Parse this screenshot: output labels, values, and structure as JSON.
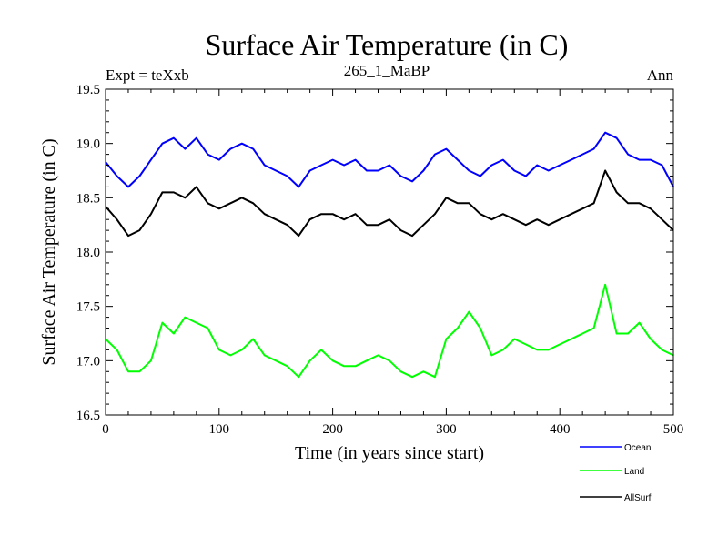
{
  "chart_data": {
    "type": "line",
    "title": "Surface Air Temperature (in C)",
    "subtitle": "265_1_MaBP",
    "left_label": "Expt = teXxb",
    "right_label": "Ann",
    "xlabel": "Time (in years since start)",
    "ylabel": "Surface Air Temperature (in C)",
    "xlim": [
      0,
      500
    ],
    "ylim": [
      16.5,
      19.5
    ],
    "x_ticks": [
      0,
      100,
      200,
      300,
      400,
      500
    ],
    "x_tick_labels": [
      "0",
      "100",
      "200",
      "300",
      "400",
      "500"
    ],
    "y_ticks": [
      16.5,
      17.0,
      17.5,
      18.0,
      18.5,
      19.0,
      19.5
    ],
    "y_tick_labels": [
      "16.5",
      "17.0",
      "17.5",
      "18.0",
      "18.5",
      "19.0",
      "19.5"
    ],
    "grid": false,
    "legend_position": "bottom-right",
    "series": [
      {
        "name": "Ocean",
        "color": "#0000ff",
        "x": [
          0,
          10,
          20,
          30,
          40,
          50,
          60,
          70,
          80,
          90,
          100,
          110,
          120,
          130,
          140,
          150,
          160,
          170,
          180,
          190,
          200,
          210,
          220,
          230,
          240,
          250,
          260,
          270,
          280,
          290,
          300,
          310,
          320,
          330,
          340,
          350,
          360,
          370,
          380,
          390,
          400,
          410,
          420,
          430,
          440,
          450,
          460,
          470,
          480,
          490,
          500
        ],
        "values": [
          18.83,
          18.7,
          18.6,
          18.7,
          18.85,
          19.0,
          19.05,
          18.95,
          19.05,
          18.9,
          18.85,
          18.95,
          19.0,
          18.95,
          18.8,
          18.75,
          18.7,
          18.6,
          18.75,
          18.8,
          18.85,
          18.8,
          18.85,
          18.75,
          18.75,
          18.8,
          18.7,
          18.65,
          18.75,
          18.9,
          18.95,
          18.85,
          18.75,
          18.7,
          18.8,
          18.85,
          18.75,
          18.7,
          18.8,
          18.75,
          18.8,
          18.85,
          18.9,
          18.95,
          19.1,
          19.05,
          18.9,
          18.85,
          18.85,
          18.8,
          18.6
        ]
      },
      {
        "name": "Land",
        "color": "#00ff00",
        "x": [
          0,
          10,
          20,
          30,
          40,
          50,
          60,
          70,
          80,
          90,
          100,
          110,
          120,
          130,
          140,
          150,
          160,
          170,
          180,
          190,
          200,
          210,
          220,
          230,
          240,
          250,
          260,
          270,
          280,
          290,
          300,
          310,
          320,
          330,
          340,
          350,
          360,
          370,
          380,
          390,
          400,
          410,
          420,
          430,
          440,
          450,
          460,
          470,
          480,
          490,
          500
        ],
        "values": [
          17.2,
          17.1,
          16.9,
          16.9,
          17.0,
          17.35,
          17.25,
          17.4,
          17.35,
          17.3,
          17.1,
          17.05,
          17.1,
          17.2,
          17.05,
          17.0,
          16.95,
          16.85,
          17.0,
          17.1,
          17.0,
          16.95,
          16.95,
          17.0,
          17.05,
          17.0,
          16.9,
          16.85,
          16.9,
          16.85,
          17.2,
          17.3,
          17.45,
          17.3,
          17.05,
          17.1,
          17.2,
          17.15,
          17.1,
          17.1,
          17.15,
          17.2,
          17.25,
          17.3,
          17.7,
          17.25,
          17.25,
          17.35,
          17.2,
          17.1,
          17.05
        ]
      },
      {
        "name": "AllSurf",
        "color": "#000000",
        "x": [
          0,
          10,
          20,
          30,
          40,
          50,
          60,
          70,
          80,
          90,
          100,
          110,
          120,
          130,
          140,
          150,
          160,
          170,
          180,
          190,
          200,
          210,
          220,
          230,
          240,
          250,
          260,
          270,
          280,
          290,
          300,
          310,
          320,
          330,
          340,
          350,
          360,
          370,
          380,
          390,
          400,
          410,
          420,
          430,
          440,
          450,
          460,
          470,
          480,
          490,
          500
        ],
        "values": [
          18.42,
          18.3,
          18.15,
          18.2,
          18.35,
          18.55,
          18.55,
          18.5,
          18.6,
          18.45,
          18.4,
          18.45,
          18.5,
          18.45,
          18.35,
          18.3,
          18.25,
          18.15,
          18.3,
          18.35,
          18.35,
          18.3,
          18.35,
          18.25,
          18.25,
          18.3,
          18.2,
          18.15,
          18.25,
          18.35,
          18.5,
          18.45,
          18.45,
          18.35,
          18.3,
          18.35,
          18.3,
          18.25,
          18.3,
          18.25,
          18.3,
          18.35,
          18.4,
          18.45,
          18.75,
          18.55,
          18.45,
          18.45,
          18.4,
          18.3,
          18.2
        ]
      }
    ]
  }
}
